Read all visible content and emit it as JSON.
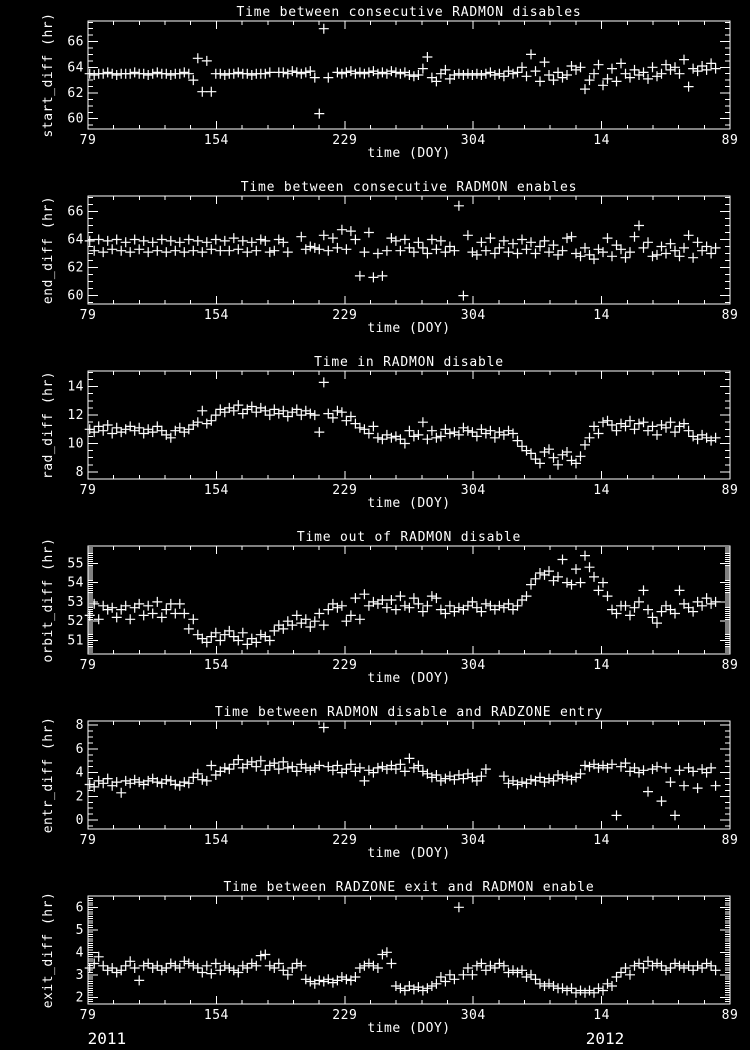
{
  "page": {
    "background": "#000000",
    "foreground": "#ffffff"
  },
  "x_axis": {
    "label": "time (DOY)",
    "range": [
      79,
      454
    ],
    "major_ticks": [
      {
        "doy": 79,
        "label": "79"
      },
      {
        "doy": 154,
        "label": "154"
      },
      {
        "doy": 229,
        "label": "229"
      },
      {
        "doy": 304,
        "label": "304"
      },
      {
        "doy": 379,
        "label": "14"
      },
      {
        "doy": 454,
        "label": "89"
      }
    ],
    "minor_step": 15
  },
  "years": [
    {
      "label": "2011",
      "doy": 90
    },
    {
      "label": "2012",
      "doy": 381
    }
  ],
  "chart_data": [
    {
      "type": "scatter",
      "marker": "plus",
      "title": "Time between consecutive RADMON disables",
      "ylabel": "start_diff (hr)",
      "xlabel": "time (DOY)",
      "y_range": [
        59.2,
        67.6
      ],
      "y_ticks": [
        60,
        62,
        64,
        66
      ],
      "y_minor_step": 0.5,
      "series": {
        "x_start": 80.0,
        "x_step": 2.63,
        "y": [
          63.5,
          63.4,
          63.5,
          63.5,
          63.6,
          63.5,
          63.4,
          63.5,
          63.5,
          63.5,
          63.6,
          63.5,
          63.5,
          63.4,
          63.5,
          63.6,
          63.5,
          63.5,
          63.4,
          63.5,
          63.5,
          63.6,
          63.5,
          63.0,
          64.7,
          62.1,
          64.5,
          62.1,
          63.5,
          63.5,
          63.4,
          63.5,
          63.5,
          63.6,
          63.5,
          63.5,
          63.4,
          63.5,
          63.5,
          63.5,
          63.6,
          null,
          63.6,
          63.6,
          63.5,
          63.7,
          63.6,
          63.5,
          63.6,
          63.7,
          63.2,
          60.4,
          67.0,
          63.2,
          null,
          63.6,
          63.5,
          63.6,
          63.7,
          63.5,
          63.6,
          63.5,
          63.6,
          63.7,
          63.5,
          63.6,
          63.5,
          63.7,
          63.6,
          63.5,
          63.6,
          63.4,
          63.3,
          63.4,
          63.9,
          64.8,
          63.2,
          62.9,
          63.5,
          63.8,
          63.1,
          63.4,
          63.5,
          63.4,
          63.5,
          63.4,
          63.5,
          63.4,
          63.5,
          63.6,
          63.4,
          63.5,
          63.3,
          63.7,
          63.5,
          63.6,
          64.0,
          63.3,
          65.0,
          63.7,
          62.9,
          64.4,
          63.4,
          63.0,
          63.6,
          63.2,
          63.4,
          64.1,
          63.8,
          64.0,
          62.3,
          63.0,
          63.5,
          64.2,
          62.6,
          63.1,
          63.9,
          62.9,
          64.3,
          63.5,
          63.2,
          63.8,
          63.4,
          63.6,
          63.1,
          64.0,
          63.3,
          63.5,
          64.2,
          63.8,
          64.0,
          63.5,
          64.6,
          62.5,
          63.9,
          63.7,
          64.1,
          63.8,
          64.3,
          63.9
        ]
      }
    },
    {
      "type": "scatter",
      "marker": "plus",
      "title": "Time between consecutive RADMON enables",
      "ylabel": "end_diff (hr)",
      "xlabel": "time (DOY)",
      "y_range": [
        59.4,
        67.1
      ],
      "y_ticks": [
        60,
        62,
        64,
        66
      ],
      "y_minor_step": 0.5,
      "series": {
        "x_start": 80.0,
        "x_step": 2.63,
        "y": [
          63.9,
          63.2,
          64.0,
          63.1,
          63.9,
          63.3,
          64.0,
          63.2,
          63.8,
          63.1,
          64.0,
          63.3,
          63.9,
          63.1,
          63.8,
          63.2,
          64.0,
          63.1,
          63.9,
          63.2,
          63.8,
          63.1,
          64.0,
          63.2,
          63.9,
          63.1,
          63.8,
          63.3,
          64.0,
          63.2,
          63.9,
          63.2,
          64.1,
          63.3,
          63.9,
          63.1,
          63.8,
          63.2,
          64.0,
          63.9,
          63.1,
          63.2,
          64.0,
          63.8,
          63.1,
          null,
          null,
          64.2,
          63.3,
          63.5,
          63.4,
          63.3,
          64.3,
          63.2,
          64.1,
          63.4,
          64.7,
          63.3,
          64.6,
          64.0,
          61.4,
          63.1,
          64.5,
          61.3,
          63.0,
          61.4,
          63.2,
          64.1,
          63.9,
          63.2,
          64.0,
          63.4,
          63.1,
          63.8,
          63.4,
          63.0,
          64.0,
          63.3,
          63.9,
          63.1,
          63.5,
          63.2,
          66.4,
          60.0,
          64.3,
          63.1,
          62.9,
          63.8,
          63.2,
          64.1,
          63.0,
          63.4,
          63.9,
          63.1,
          63.7,
          63.0,
          64.0,
          63.3,
          63.8,
          63.0,
          63.5,
          63.9,
          63.1,
          63.6,
          62.9,
          63.2,
          64.1,
          64.2,
          63.0,
          62.8,
          63.4,
          62.9,
          62.6,
          63.3,
          63.1,
          64.1,
          62.8,
          63.6,
          63.3,
          62.7,
          63.1,
          64.2,
          65.0,
          63.4,
          63.8,
          62.8,
          62.9,
          63.5,
          63.0,
          63.7,
          63.2,
          62.8,
          63.4,
          64.3,
          62.7,
          63.8,
          63.2,
          63.5,
          63.0,
          63.4
        ]
      }
    },
    {
      "type": "scatter",
      "marker": "plus",
      "title": "Time in RADMON disable",
      "ylabel": "rad_diff (hr)",
      "xlabel": "time (DOY)",
      "y_range": [
        7.5,
        15.1
      ],
      "y_ticks": [
        8,
        10,
        12,
        14
      ],
      "y_minor_step": 0.5,
      "series": {
        "x_start": 80.0,
        "x_step": 2.63,
        "y": [
          11.0,
          10.8,
          11.2,
          10.9,
          11.3,
          10.7,
          11.1,
          10.8,
          11.0,
          11.2,
          10.9,
          11.1,
          10.7,
          11.0,
          10.8,
          11.2,
          10.9,
          10.6,
          10.4,
          10.9,
          11.1,
          10.8,
          11.0,
          11.3,
          11.5,
          12.3,
          11.4,
          11.6,
          12.0,
          12.4,
          12.2,
          12.5,
          12.3,
          12.7,
          12.1,
          12.4,
          12.6,
          12.2,
          12.5,
          12.3,
          12.0,
          12.4,
          12.1,
          12.3,
          11.9,
          12.2,
          12.4,
          12.0,
          12.3,
          12.1,
          12.0,
          10.8,
          14.3,
          12.1,
          11.8,
          12.3,
          12.2,
          11.6,
          11.9,
          11.4,
          11.1,
          11.0,
          10.7,
          11.2,
          10.4,
          10.3,
          10.6,
          10.4,
          10.5,
          10.3,
          10.0,
          10.9,
          10.5,
          10.6,
          11.5,
          10.3,
          10.9,
          10.4,
          10.5,
          11.0,
          10.7,
          10.8,
          10.6,
          11.1,
          10.9,
          10.8,
          10.5,
          11.0,
          10.7,
          10.9,
          10.4,
          10.8,
          10.6,
          10.9,
          10.7,
          10.2,
          9.8,
          9.5,
          9.3,
          8.9,
          8.6,
          9.4,
          9.6,
          9.0,
          8.5,
          9.2,
          9.4,
          8.8,
          8.6,
          9.1,
          9.9,
          10.4,
          11.2,
          10.7,
          11.5,
          11.6,
          11.3,
          10.9,
          11.4,
          11.2,
          11.6,
          11.0,
          11.4,
          11.5,
          10.9,
          11.2,
          10.6,
          11.3,
          11.1,
          11.5,
          10.8,
          11.2,
          11.4,
          10.9,
          10.5,
          10.3,
          10.6,
          10.4,
          10.2,
          10.4
        ]
      }
    },
    {
      "type": "scatter",
      "marker": "plus",
      "title": "Time out of RADMON disable",
      "ylabel": "orbit_diff (hr)",
      "xlabel": "time (DOY)",
      "y_range": [
        50.3,
        55.9
      ],
      "y_ticks": [
        51,
        52,
        53,
        54,
        55
      ],
      "y_minor_step": 0.1,
      "series": {
        "x_start": 80.0,
        "x_step": 2.63,
        "y": [
          52.3,
          52.9,
          52.1,
          52.8,
          52.6,
          52.7,
          52.2,
          52.6,
          52.8,
          52.1,
          52.7,
          52.9,
          52.3,
          52.8,
          52.4,
          53.0,
          52.2,
          52.6,
          52.9,
          52.4,
          52.9,
          52.4,
          51.6,
          52.1,
          51.3,
          51.1,
          50.9,
          51.2,
          51.4,
          51.0,
          51.3,
          51.5,
          51.2,
          51.0,
          51.4,
          50.8,
          51.1,
          50.9,
          51.3,
          51.2,
          51.0,
          51.5,
          51.8,
          51.6,
          52.0,
          51.8,
          52.3,
          51.9,
          52.1,
          51.7,
          52.0,
          52.4,
          51.8,
          52.6,
          52.9,
          52.7,
          52.8,
          52.0,
          52.3,
          53.2,
          52.1,
          53.4,
          52.8,
          53.0,
          52.9,
          53.1,
          52.7,
          53.1,
          52.6,
          53.3,
          52.8,
          52.7,
          53.2,
          52.9,
          52.5,
          52.8,
          53.3,
          53.2,
          52.6,
          52.4,
          52.8,
          52.5,
          52.7,
          52.6,
          52.8,
          53.0,
          52.7,
          52.5,
          52.9,
          52.8,
          52.6,
          52.8,
          52.7,
          52.9,
          52.6,
          52.8,
          53.1,
          53.3,
          53.9,
          54.2,
          54.5,
          54.4,
          54.6,
          54.1,
          54.3,
          55.2,
          54.0,
          53.9,
          54.7,
          54.0,
          55.4,
          54.8,
          54.3,
          53.6,
          54.0,
          53.3,
          52.6,
          52.4,
          52.8,
          52.8,
          52.3,
          52.7,
          53.0,
          53.6,
          52.6,
          52.2,
          51.9,
          52.5,
          52.8,
          52.6,
          52.4,
          53.6,
          52.9,
          52.7,
          52.5,
          53.0,
          52.8,
          53.2,
          52.9,
          53.0
        ]
      }
    },
    {
      "type": "scatter",
      "marker": "plus",
      "title": "Time between RADMON disable and RADZONE entry",
      "ylabel": "entr_diff (hr)",
      "xlabel": "time (DOY)",
      "y_range": [
        -0.75,
        8.35
      ],
      "y_ticks": [
        0,
        2,
        4,
        6,
        8
      ],
      "y_minor_step": 0.5,
      "series": {
        "x_start": 80.0,
        "x_step": 2.63,
        "y": [
          3.0,
          2.8,
          3.3,
          3.1,
          3.5,
          2.9,
          3.2,
          2.3,
          3.3,
          3.1,
          3.4,
          3.2,
          3.0,
          3.3,
          3.5,
          3.2,
          3.1,
          3.4,
          3.3,
          3.0,
          2.9,
          3.2,
          3.1,
          3.6,
          3.9,
          3.4,
          3.3,
          4.6,
          3.8,
          4.1,
          4.4,
          4.3,
          4.7,
          5.1,
          4.4,
          4.7,
          4.9,
          4.5,
          5.0,
          4.2,
          4.6,
          4.8,
          4.3,
          4.9,
          4.4,
          4.5,
          4.1,
          4.7,
          4.4,
          4.2,
          4.4,
          4.6,
          7.8,
          4.5,
          4.2,
          4.6,
          4.0,
          4.3,
          4.7,
          4.1,
          4.4,
          3.3,
          4.2,
          4.0,
          4.4,
          4.5,
          4.3,
          4.6,
          4.3,
          4.7,
          4.1,
          5.2,
          4.4,
          4.6,
          4.1,
          3.9,
          3.6,
          3.8,
          3.3,
          3.5,
          3.7,
          3.4,
          3.8,
          3.5,
          3.9,
          3.6,
          3.3,
          3.7,
          4.3,
          null,
          null,
          null,
          3.7,
          3.1,
          3.3,
          3.0,
          3.2,
          3.1,
          3.4,
          3.3,
          3.6,
          3.2,
          3.5,
          3.3,
          3.8,
          3.5,
          3.7,
          3.4,
          3.6,
          3.9,
          4.6,
          4.5,
          4.7,
          4.4,
          4.6,
          4.4,
          4.7,
          0.4,
          4.5,
          4.8,
          4.1,
          4.4,
          4.0,
          4.2,
          2.4,
          4.3,
          4.5,
          1.6,
          4.4,
          3.2,
          0.4,
          4.2,
          2.9,
          4.4,
          4.1,
          2.7,
          4.3,
          4.0,
          4.4,
          2.9
        ]
      }
    },
    {
      "type": "scatter",
      "marker": "plus",
      "title": "Time between RADZONE exit and RADMON enable",
      "ylabel": "exit_diff (hr)",
      "xlabel": "time (DOY)",
      "y_range": [
        1.7,
        6.5
      ],
      "y_ticks": [
        2,
        3,
        4,
        5,
        6
      ],
      "y_minor_step": 0.1,
      "series": {
        "x_start": 80.0,
        "x_step": 2.63,
        "y": [
          3.3,
          3.5,
          3.8,
          3.4,
          3.2,
          3.3,
          3.1,
          3.2,
          3.4,
          3.6,
          3.3,
          2.75,
          3.4,
          3.5,
          3.3,
          3.4,
          3.2,
          3.3,
          3.5,
          3.4,
          3.3,
          3.6,
          3.5,
          3.4,
          3.3,
          3.1,
          3.4,
          3.05,
          3.5,
          3.2,
          3.4,
          3.3,
          3.2,
          3.1,
          3.4,
          3.3,
          3.5,
          3.4,
          3.85,
          3.9,
          3.4,
          3.3,
          3.5,
          3.2,
          3.0,
          3.3,
          3.5,
          3.4,
          2.8,
          2.7,
          2.6,
          2.75,
          2.7,
          2.8,
          2.65,
          2.75,
          2.9,
          2.8,
          2.75,
          2.9,
          3.3,
          3.4,
          3.5,
          3.4,
          3.3,
          3.9,
          4.0,
          3.5,
          2.5,
          2.4,
          2.3,
          2.5,
          2.35,
          2.45,
          2.3,
          2.4,
          2.5,
          2.6,
          2.9,
          2.7,
          3.0,
          2.8,
          6.0,
          3.0,
          3.3,
          3.0,
          3.4,
          3.5,
          3.2,
          3.4,
          3.3,
          3.5,
          3.4,
          3.1,
          3.2,
          3.1,
          3.2,
          2.9,
          3.0,
          2.8,
          2.6,
          2.5,
          2.6,
          2.5,
          2.4,
          2.4,
          2.3,
          2.4,
          2.2,
          2.3,
          2.2,
          2.3,
          2.2,
          2.4,
          2.3,
          2.6,
          2.5,
          2.9,
          3.1,
          3.3,
          3.0,
          3.4,
          3.5,
          3.3,
          3.6,
          3.4,
          3.5,
          3.4,
          3.2,
          3.3,
          3.5,
          3.4,
          3.3,
          3.4,
          3.2,
          3.4,
          3.3,
          3.5,
          3.4,
          3.2
        ]
      }
    }
  ]
}
